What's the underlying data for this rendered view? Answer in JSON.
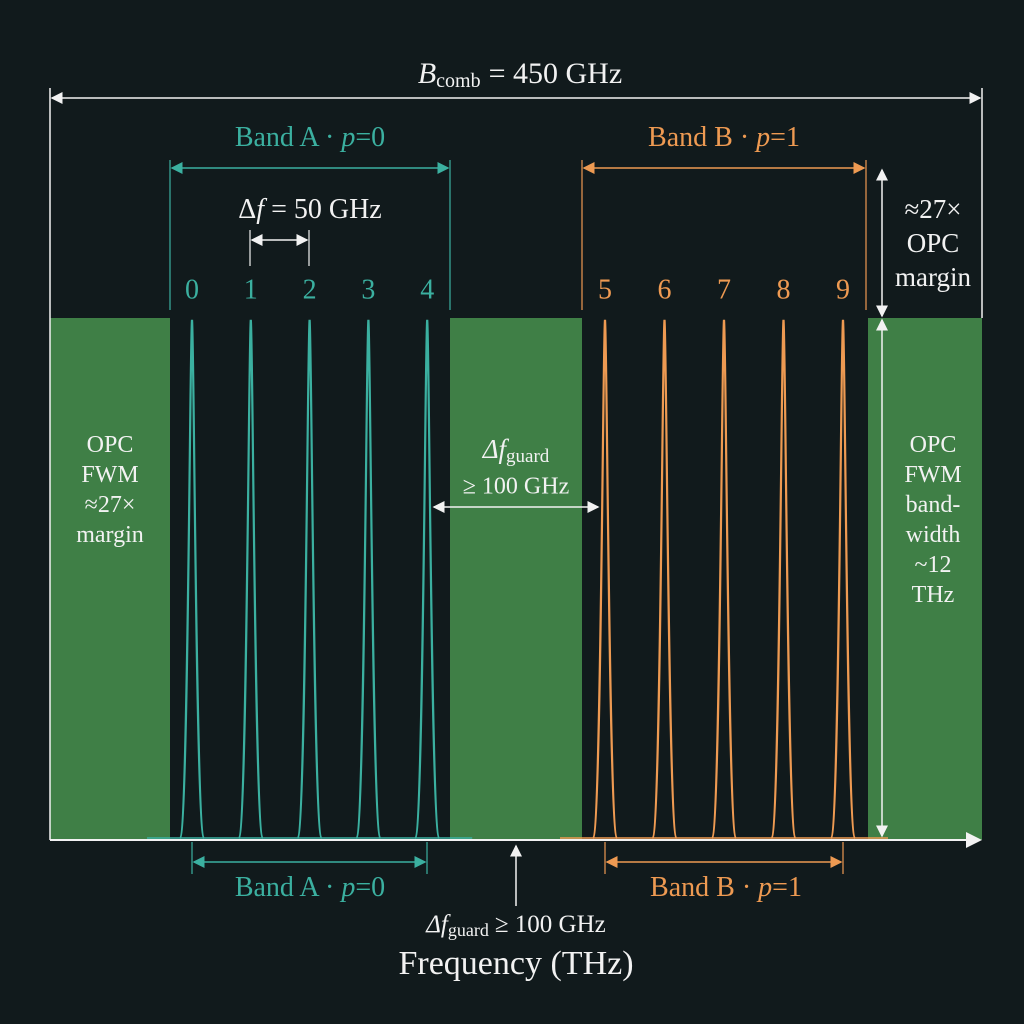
{
  "title": {
    "symbol": "B",
    "subscript": "comb",
    "rest": "= 450 GHz"
  },
  "band_a": {
    "top_label": {
      "prefix": "Band A ·",
      "var": "p",
      "suffix": "=0"
    },
    "bottom_label": {
      "prefix": "Band A ·",
      "var": "p",
      "suffix": "=0"
    },
    "spacing_label": {
      "symbol": "Δ",
      "var": "f",
      "rest": "= 50 GHz"
    },
    "channels": [
      "0",
      "1",
      "2",
      "3",
      "4"
    ]
  },
  "band_b": {
    "top_label": {
      "prefix": "Band B ·",
      "var": "p",
      "suffix": "=1"
    },
    "bottom_label": {
      "prefix": "Band B ·",
      "var": "p",
      "suffix": "=1"
    },
    "channels": [
      "5",
      "6",
      "7",
      "8",
      "9"
    ]
  },
  "guard_mid": {
    "symbol": "Δf",
    "subscript": "guard",
    "rest": "≥ 100 GHz"
  },
  "guard_bottom": {
    "symbol": "Δf",
    "subscript": "guard",
    "rest": "≥ 100 GHz"
  },
  "margin_top": {
    "lines": [
      "≈27×",
      "OPC",
      "margin"
    ]
  },
  "left_region": {
    "lines": [
      "OPC",
      "FWM",
      "≈27×",
      "margin"
    ]
  },
  "right_region": {
    "lines": [
      "OPC",
      "FWM",
      "band-",
      "width",
      "~12",
      "THz"
    ]
  },
  "x_axis_label": "Frequency (THz)"
}
